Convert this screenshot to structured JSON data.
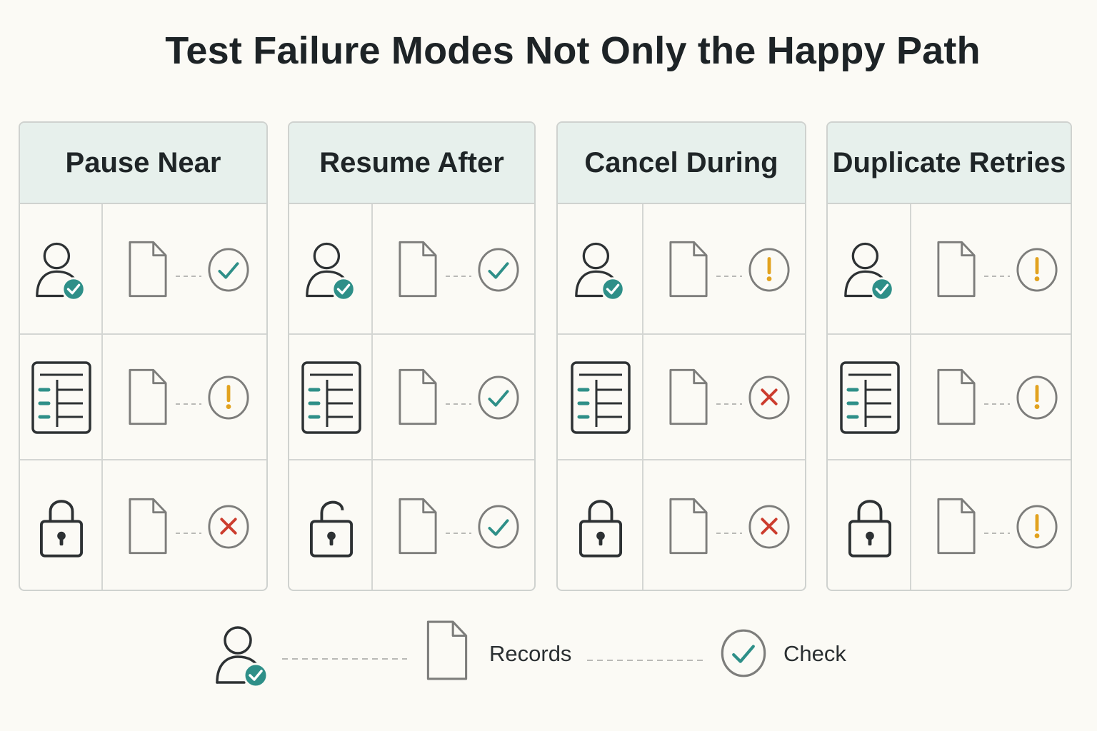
{
  "title": "Test Failure Modes Not Only the Happy Path",
  "colors": {
    "teal": "#2e8f88",
    "ok": "#2e8f88",
    "warn": "#e2a21e",
    "fail": "#cc3d2e",
    "outline": "#7d7d7b",
    "dark": "#2d3133"
  },
  "columns": [
    {
      "label": "Pause Near",
      "rows": [
        {
          "row_icon": "user-check-icon",
          "status": "check"
        },
        {
          "row_icon": "checklist-icon",
          "status": "warning"
        },
        {
          "row_icon": "lock-closed-icon",
          "status": "fail"
        }
      ]
    },
    {
      "label": "Resume After",
      "rows": [
        {
          "row_icon": "user-check-icon",
          "status": "check"
        },
        {
          "row_icon": "checklist-icon",
          "status": "check"
        },
        {
          "row_icon": "lock-open-icon",
          "status": "check"
        }
      ]
    },
    {
      "label": "Cancel During",
      "rows": [
        {
          "row_icon": "user-check-icon",
          "status": "warning"
        },
        {
          "row_icon": "checklist-icon",
          "status": "fail"
        },
        {
          "row_icon": "lock-closed-icon",
          "status": "fail"
        }
      ]
    },
    {
      "label": "Duplicate Retries",
      "rows": [
        {
          "row_icon": "user-check-icon",
          "status": "warning"
        },
        {
          "row_icon": "checklist-icon",
          "status": "warning"
        },
        {
          "row_icon": "lock-closed-icon",
          "status": "warning"
        }
      ]
    }
  ],
  "legend": {
    "items": [
      {
        "icon": "user-check-icon",
        "label": ""
      },
      {
        "icon": "document-icon",
        "label": "Records"
      },
      {
        "icon": "check-circle-icon",
        "label": "Check"
      }
    ]
  }
}
